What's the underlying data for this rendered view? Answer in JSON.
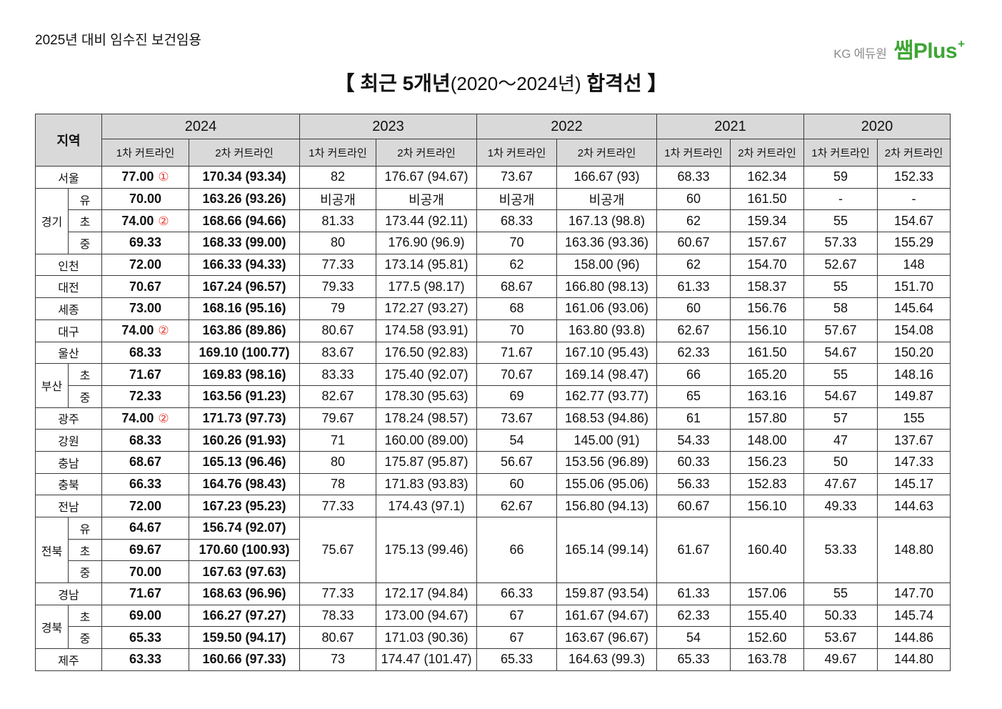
{
  "header_note": "2025년 대비 임수진 보건임용",
  "logo": {
    "brand": "KG 에듀원",
    "name": "쌤Plus",
    "sup": "+"
  },
  "title": {
    "lead": "【 최근 5개년",
    "range": "(2020～2024년)",
    "tail": "합격선 】"
  },
  "colors": {
    "logo_green": "#3fa535",
    "logo_gray": "#8c8c8c",
    "mark_red": "#e8392f",
    "header_bg": "#d9d9d9",
    "grid_line": "#3a3a3a"
  },
  "table": {
    "region_header": "지역",
    "years": [
      "2024",
      "2023",
      "2022",
      "2021",
      "2020"
    ],
    "sub_headers": [
      "1차 커트라인",
      "2차 커트라인"
    ],
    "groups": [
      {
        "region": "서울",
        "rows": [
          {
            "v": [
              "77.00",
              "170.34 (93.34)",
              "82",
              "176.67 (94.67)",
              "73.67",
              "166.67 (93)",
              "68.33",
              "162.34",
              "59",
              "152.33"
            ],
            "mark": "①"
          }
        ]
      },
      {
        "region": "경기",
        "rows": [
          {
            "sub": "유",
            "v": [
              "70.00",
              "163.26 (93.26)",
              "비공개",
              "비공개",
              "비공개",
              "비공개",
              "60",
              "161.50",
              "-",
              "-"
            ]
          },
          {
            "sub": "초",
            "v": [
              "74.00",
              "168.66 (94.66)",
              "81.33",
              "173.44 (92.11)",
              "68.33",
              "167.13 (98.8)",
              "62",
              "159.34",
              "55",
              "154.67"
            ],
            "mark": "②"
          },
          {
            "sub": "중",
            "v": [
              "69.33",
              "168.33 (99.00)",
              "80",
              "176.90 (96.9)",
              "70",
              "163.36 (93.36)",
              "60.67",
              "157.67",
              "57.33",
              "155.29"
            ]
          }
        ]
      },
      {
        "region": "인천",
        "rows": [
          {
            "v": [
              "72.00",
              "166.33 (94.33)",
              "77.33",
              "173.14 (95.81)",
              "62",
              "158.00 (96)",
              "62",
              "154.70",
              "52.67",
              "148"
            ]
          }
        ]
      },
      {
        "region": "대전",
        "rows": [
          {
            "v": [
              "70.67",
              "167.24 (96.57)",
              "79.33",
              "177.5 (98.17)",
              "68.67",
              "166.80 (98.13)",
              "61.33",
              "158.37",
              "55",
              "151.70"
            ]
          }
        ]
      },
      {
        "region": "세종",
        "rows": [
          {
            "v": [
              "73.00",
              "168.16 (95.16)",
              "79",
              "172.27 (93.27)",
              "68",
              "161.06 (93.06)",
              "60",
              "156.76",
              "58",
              "145.64"
            ]
          }
        ]
      },
      {
        "region": "대구",
        "rows": [
          {
            "v": [
              "74.00",
              "163.86 (89.86)",
              "80.67",
              "174.58 (93.91)",
              "70",
              "163.80 (93.8)",
              "62.67",
              "156.10",
              "57.67",
              "154.08"
            ],
            "mark": "②"
          }
        ]
      },
      {
        "region": "울산",
        "rows": [
          {
            "v": [
              "68.33",
              "169.10 (100.77)",
              "83.67",
              "176.50 (92.83)",
              "71.67",
              "167.10 (95.43)",
              "62.33",
              "161.50",
              "54.67",
              "150.20"
            ]
          }
        ]
      },
      {
        "region": "부산",
        "rows": [
          {
            "sub": "초",
            "v": [
              "71.67",
              "169.83 (98.16)",
              "83.33",
              "175.40 (92.07)",
              "70.67",
              "169.14 (98.47)",
              "66",
              "165.20",
              "55",
              "148.16"
            ]
          },
          {
            "sub": "중",
            "v": [
              "72.33",
              "163.56 (91.23)",
              "82.67",
              "178.30 (95.63)",
              "69",
              "162.77 (93.77)",
              "65",
              "163.16",
              "54.67",
              "149.87"
            ]
          }
        ]
      },
      {
        "region": "광주",
        "rows": [
          {
            "v": [
              "74.00",
              "171.73 (97.73)",
              "79.67",
              "178.24 (98.57)",
              "73.67",
              "168.53 (94.86)",
              "61",
              "157.80",
              "57",
              "155"
            ],
            "mark": "②"
          }
        ]
      },
      {
        "region": "강원",
        "rows": [
          {
            "v": [
              "68.33",
              "160.26 (91.93)",
              "71",
              "160.00 (89.00)",
              "54",
              "145.00 (91)",
              "54.33",
              "148.00",
              "47",
              "137.67"
            ]
          }
        ]
      },
      {
        "region": "충남",
        "rows": [
          {
            "v": [
              "68.67",
              "165.13 (96.46)",
              "80",
              "175.87 (95.87)",
              "56.67",
              "153.56 (96.89)",
              "60.33",
              "156.23",
              "50",
              "147.33"
            ]
          }
        ]
      },
      {
        "region": "충북",
        "rows": [
          {
            "v": [
              "66.33",
              "164.76 (98.43)",
              "78",
              "171.83 (93.83)",
              "60",
              "155.06 (95.06)",
              "56.33",
              "152.83",
              "47.67",
              "145.17"
            ]
          }
        ]
      },
      {
        "region": "전남",
        "rows": [
          {
            "v": [
              "72.00",
              "167.23 (95.23)",
              "77.33",
              "174.43 (97.1)",
              "62.67",
              "156.80 (94.13)",
              "60.67",
              "156.10",
              "49.33",
              "144.63"
            ]
          }
        ]
      },
      {
        "region": "전북",
        "rows": [
          {
            "sub": "유",
            "v": [
              "64.67",
              "156.74 (92.07)"
            ]
          },
          {
            "sub": "초",
            "v": [
              "69.67",
              "170.60 (100.93)"
            ]
          },
          {
            "sub": "중",
            "v": [
              "70.00",
              "167.63 (97.63)"
            ]
          }
        ],
        "shared": [
          "75.67",
          "175.13 (99.46)",
          "66",
          "165.14 (99.14)",
          "61.67",
          "160.40",
          "53.33",
          "148.80"
        ]
      },
      {
        "region": "경남",
        "rows": [
          {
            "v": [
              "71.67",
              "168.63 (96.96)",
              "77.33",
              "172.17 (94.84)",
              "66.33",
              "159.87 (93.54)",
              "61.33",
              "157.06",
              "55",
              "147.70"
            ]
          }
        ]
      },
      {
        "region": "경북",
        "rows": [
          {
            "sub": "초",
            "v": [
              "69.00",
              "166.27 (97.27)",
              "78.33",
              "173.00 (94.67)",
              "67",
              "161.67 (94.67)",
              "62.33",
              "155.40",
              "50.33",
              "145.74"
            ]
          },
          {
            "sub": "중",
            "v": [
              "65.33",
              "159.50 (94.17)",
              "80.67",
              "171.03 (90.36)",
              "67",
              "163.67 (96.67)",
              "54",
              "152.60",
              "53.67",
              "144.86"
            ]
          }
        ]
      },
      {
        "region": "제주",
        "rows": [
          {
            "v": [
              "63.33",
              "160.66 (97.33)",
              "73",
              "174.47 (101.47)",
              "65.33",
              "164.63 (99.3)",
              "65.33",
              "163.78",
              "49.67",
              "144.80"
            ]
          }
        ]
      }
    ]
  }
}
